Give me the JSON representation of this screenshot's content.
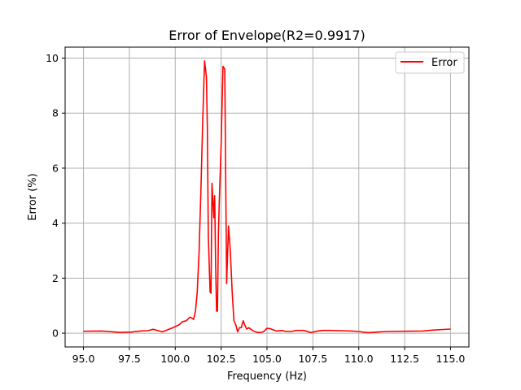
{
  "chart_data": {
    "type": "line",
    "title": "Error of Envelope(R2=0.9917)",
    "xlabel": "Frequency (Hz)",
    "ylabel": "Error (%)",
    "xlim": [
      94.0,
      116.0
    ],
    "ylim": [
      -0.5,
      10.4
    ],
    "xticks": [
      95.0,
      97.5,
      100.0,
      102.5,
      105.0,
      107.5,
      110.0,
      112.5,
      115.0
    ],
    "xtick_labels": [
      "95.0",
      "97.5",
      "100.0",
      "102.5",
      "105.0",
      "107.5",
      "110.0",
      "112.5",
      "115.0"
    ],
    "yticks": [
      0,
      2,
      4,
      6,
      8,
      10
    ],
    "ytick_labels": [
      "0",
      "2",
      "4",
      "6",
      "8",
      "10"
    ],
    "grid": true,
    "legend_position": "top-right",
    "series": [
      {
        "name": "Error",
        "color": "#ff0000",
        "x": [
          95.0,
          96.0,
          96.6,
          97.0,
          97.6,
          98.1,
          98.5,
          98.8,
          99.3,
          99.8,
          100.2,
          100.4,
          100.6,
          100.8,
          100.9,
          101.0,
          101.1,
          101.2,
          101.3,
          101.4,
          101.5,
          101.6,
          101.7,
          101.75,
          101.8,
          101.9,
          101.95,
          102.0,
          102.1,
          102.15,
          102.2,
          102.25,
          102.3,
          102.35,
          102.4,
          102.5,
          102.6,
          102.7,
          102.8,
          102.9,
          103.0,
          103.1,
          103.2,
          103.3,
          103.4,
          103.5,
          103.6,
          103.7,
          103.8,
          103.9,
          104.0,
          104.2,
          104.4,
          104.6,
          104.8,
          105.0,
          105.2,
          105.5,
          105.8,
          106.0,
          106.3,
          106.6,
          107.0,
          107.4,
          107.7,
          108.0,
          108.4,
          109.0,
          109.6,
          110.0,
          110.5,
          111.0,
          111.5,
          112.5,
          113.5,
          114.0,
          115.0
        ],
        "y": [
          0.07,
          0.08,
          0.05,
          0.03,
          0.04,
          0.08,
          0.09,
          0.14,
          0.05,
          0.18,
          0.3,
          0.42,
          0.45,
          0.58,
          0.55,
          0.5,
          0.8,
          1.5,
          3.0,
          5.2,
          7.8,
          9.9,
          9.3,
          7.5,
          3.5,
          1.5,
          1.45,
          5.45,
          4.2,
          5.0,
          2.5,
          0.8,
          0.8,
          3.6,
          4.8,
          6.8,
          9.7,
          9.6,
          1.8,
          3.9,
          3.0,
          1.5,
          0.45,
          0.3,
          0.05,
          0.2,
          0.2,
          0.45,
          0.28,
          0.15,
          0.2,
          0.1,
          0.04,
          0.02,
          0.05,
          0.18,
          0.16,
          0.08,
          0.1,
          0.07,
          0.06,
          0.1,
          0.1,
          0.02,
          0.07,
          0.1,
          0.1,
          0.09,
          0.08,
          0.06,
          0.02,
          0.04,
          0.06,
          0.07,
          0.08,
          0.11,
          0.15
        ]
      }
    ]
  }
}
